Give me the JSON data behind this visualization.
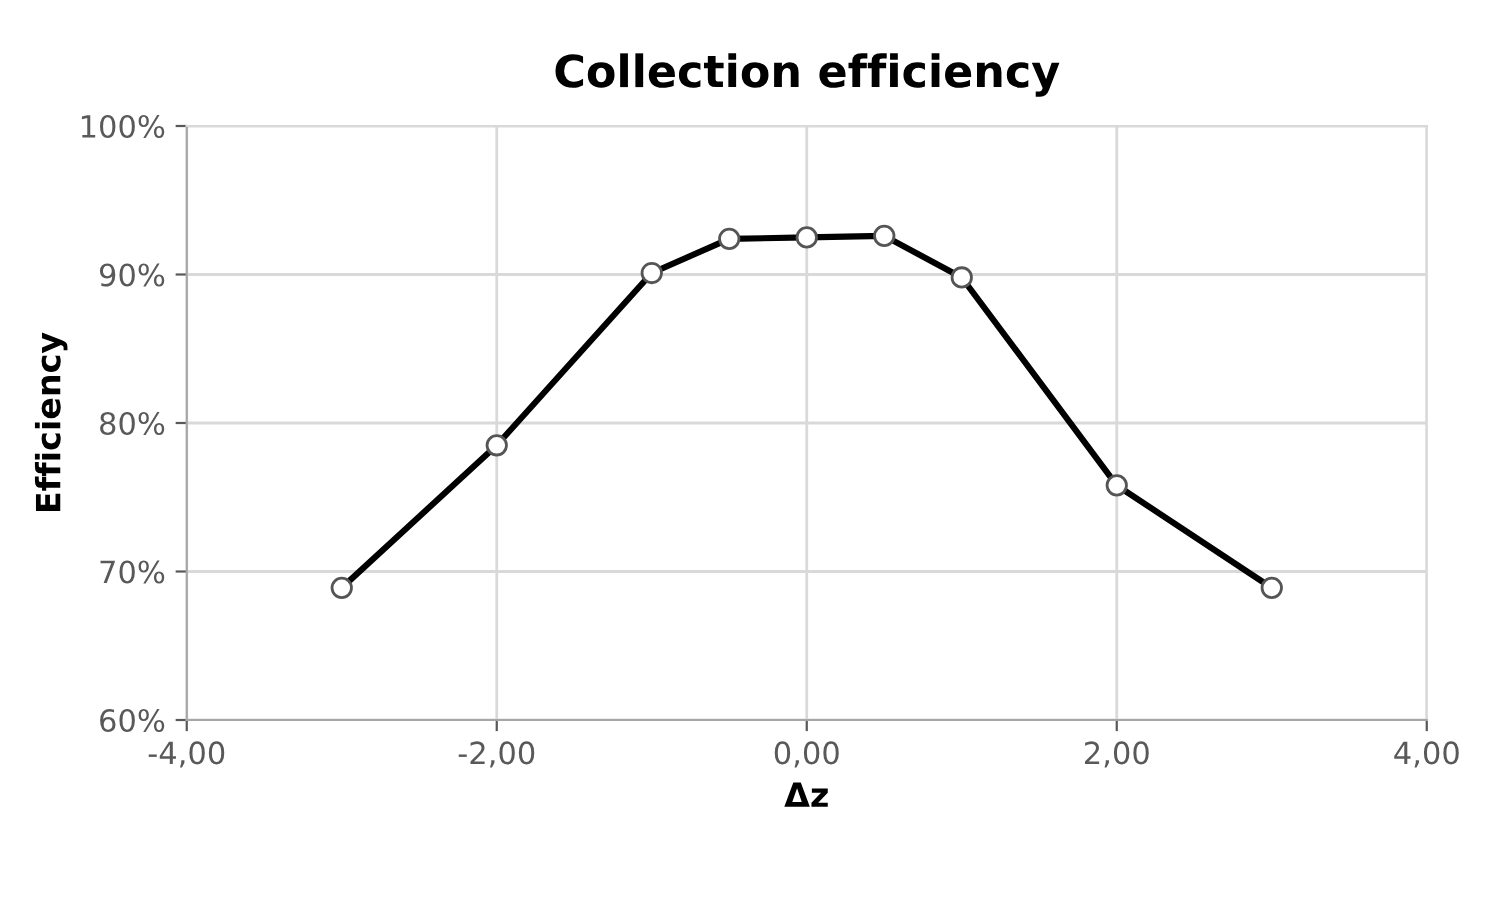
{
  "chart_data": {
    "type": "line",
    "title": "Collection efficiency",
    "xlabel": "Δz",
    "ylabel": "Efficiency",
    "x": [
      -3,
      -2,
      -1,
      -0.5,
      0,
      0.5,
      1,
      2,
      3
    ],
    "series": [
      {
        "color": "#000000",
        "values": [
          68.9,
          78.5,
          90.1,
          92.4,
          92.5,
          92.6,
          89.8,
          75.8,
          68.9
        ]
      }
    ],
    "xlim": [
      -4,
      4
    ],
    "xticks": [
      {
        "value": -4,
        "label": "-4,00"
      },
      {
        "value": -2,
        "label": "-2,00"
      },
      {
        "value": 0,
        "label": "0,00"
      },
      {
        "value": 2,
        "label": "2,00"
      },
      {
        "value": 4,
        "label": "4,00"
      }
    ],
    "ylim": [
      60,
      100
    ],
    "yticks": [
      {
        "value": 60,
        "label": "60%"
      },
      {
        "value": 70,
        "label": "70%"
      },
      {
        "value": 80,
        "label": "80%"
      },
      {
        "value": 90,
        "label": "90%"
      },
      {
        "value": 100,
        "label": "100%"
      }
    ],
    "grid": true,
    "marker": "circle",
    "line_style": "solid",
    "legend": false
  }
}
